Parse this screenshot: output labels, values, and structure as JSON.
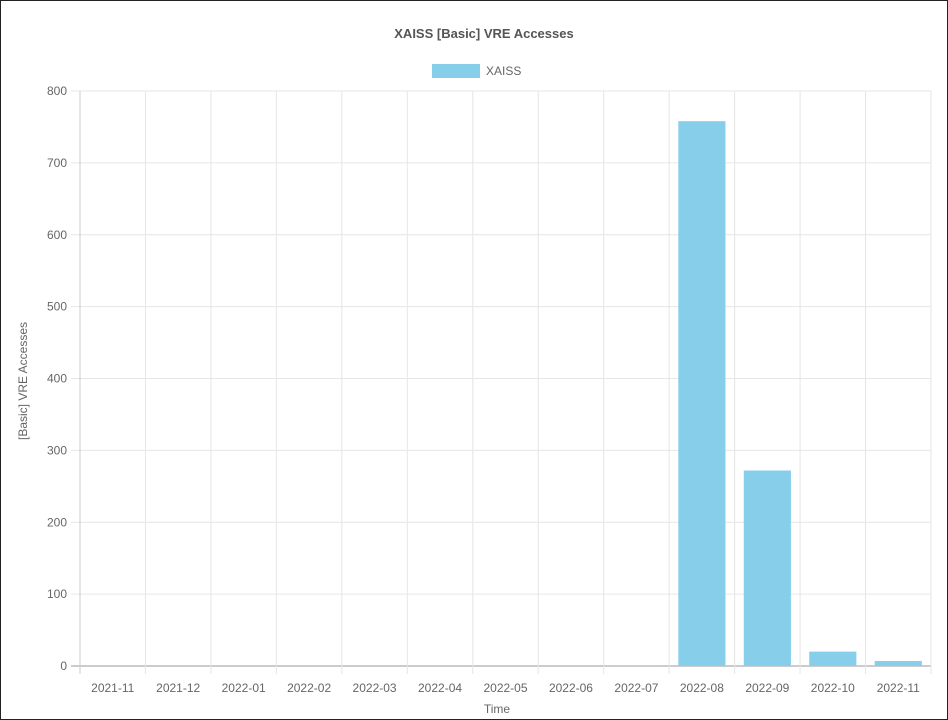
{
  "chart_data": {
    "type": "bar",
    "title": "XAISS [Basic] VRE Accesses",
    "xlabel": "Time",
    "ylabel": "[Basic] VRE Accesses",
    "ylim": [
      0,
      800
    ],
    "yticks": [
      0,
      100,
      200,
      300,
      400,
      500,
      600,
      700,
      800
    ],
    "grid": true,
    "legend": "top-center",
    "categories": [
      "2021-11",
      "2021-12",
      "2022-01",
      "2022-02",
      "2022-03",
      "2022-04",
      "2022-05",
      "2022-06",
      "2022-07",
      "2022-08",
      "2022-09",
      "2022-10",
      "2022-11"
    ],
    "series": [
      {
        "name": "XAISS",
        "color": "#87ceeb",
        "values": [
          0,
          0,
          0,
          0,
          0,
          0,
          0,
          0,
          1,
          758,
          272,
          20,
          7
        ]
      }
    ]
  }
}
